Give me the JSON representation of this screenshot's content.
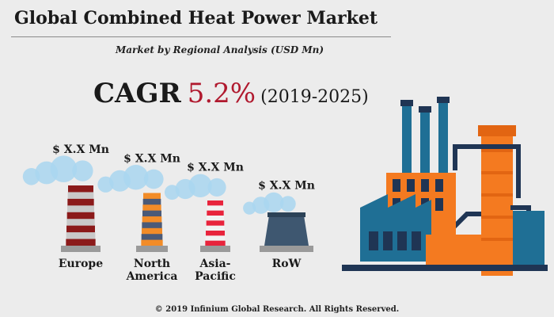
{
  "header": {
    "title": "Global Combined Heat Power Market",
    "subtitle": "Market by Regional Analysis (USD Mn)"
  },
  "cagr": {
    "label": "CAGR",
    "value": "5.2%",
    "period": "(2019-2025)"
  },
  "chart_data": {
    "type": "bar",
    "categories": [
      "Europe",
      "North America",
      "Asia-Pacific",
      "RoW"
    ],
    "category_lines": [
      [
        "Europe"
      ],
      [
        "North",
        "America"
      ],
      [
        "Asia-",
        "Pacific"
      ],
      [
        "RoW"
      ]
    ],
    "data_labels": [
      "$ X.X Mn",
      "$ X.X Mn",
      "$ X.X Mn",
      "$ X.X Mn"
    ],
    "values": [
      4,
      3.5,
      3,
      2
    ],
    "chimney_colors": [
      [
        "#8b1a1a",
        "#c9c9c9"
      ],
      [
        "#f28c28",
        "#4a5a78"
      ],
      [
        "#e8243c",
        "#f2f2f2"
      ],
      [
        "#3e5770",
        "#3e5770"
      ]
    ]
  },
  "colors": {
    "orange": "#f47a20",
    "blue": "#1f6f95",
    "navy": "#1f3554",
    "smoke": "#a9d6f0"
  },
  "footer": {
    "copyright": "© 2019 Infinium Global Research. All Rights Reserved."
  }
}
